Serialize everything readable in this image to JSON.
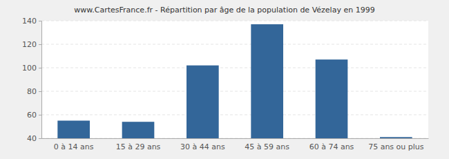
{
  "chart_data": {
    "type": "bar",
    "title": "www.CartesFrance.fr - Répartition par âge de la population de Vézelay en 1999",
    "categories": [
      "0 à 14 ans",
      "15 à 29 ans",
      "30 à 44 ans",
      "45 à 59 ans",
      "60 à 74 ans",
      "75 ans ou plus"
    ],
    "values": [
      55,
      54,
      102,
      137,
      107,
      41
    ],
    "color": "#336699",
    "ylim": [
      40,
      140
    ],
    "yticks": [
      40,
      60,
      80,
      100,
      120,
      140
    ],
    "grid": true
  }
}
